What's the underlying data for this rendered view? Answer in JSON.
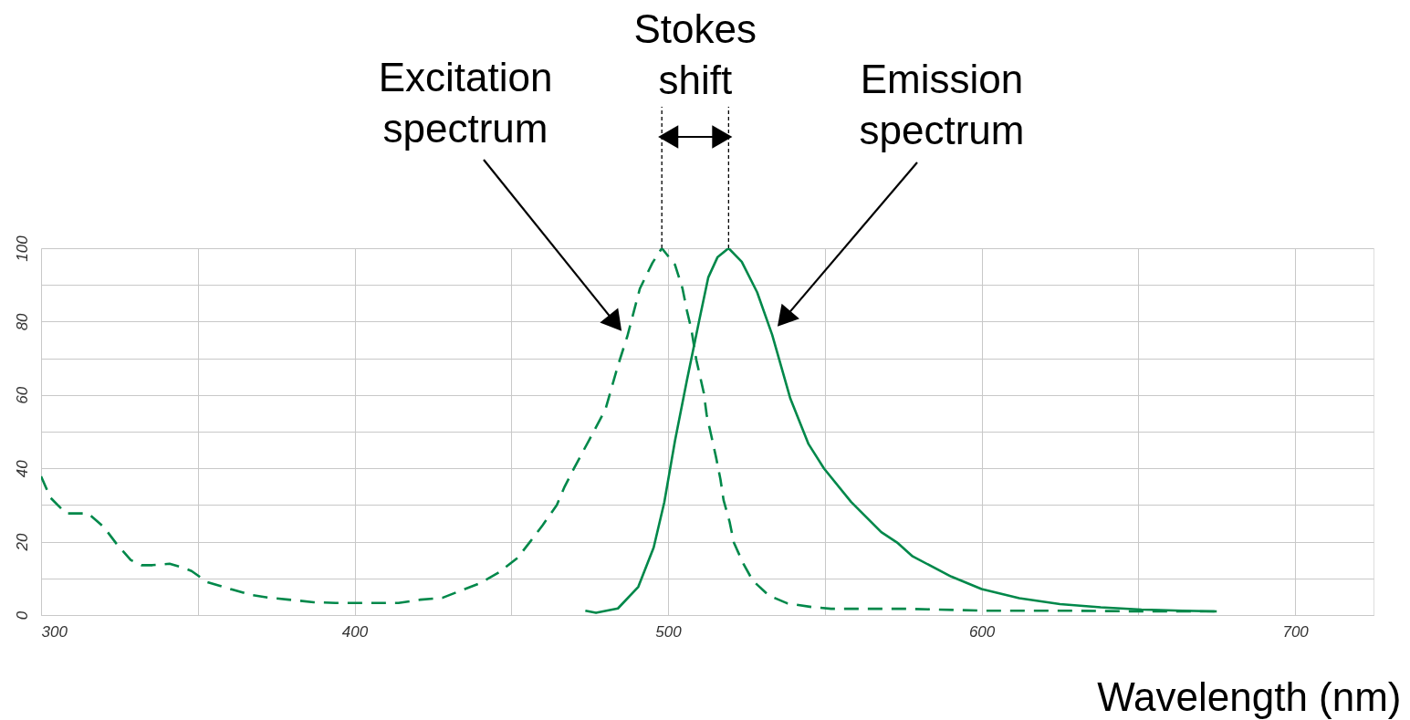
{
  "chart_data": {
    "type": "line",
    "xlabel": "Wavelength (nm)",
    "xlim": [
      300,
      725
    ],
    "ylim": [
      0,
      100
    ],
    "xticks": [
      300,
      {
        "value": 350,
        "label": null
      },
      400,
      {
        "value": 450,
        "label": null
      },
      500,
      {
        "value": 550,
        "label": null
      },
      600,
      {
        "value": 650,
        "label": null
      },
      700
    ],
    "yticks": [
      0,
      {
        "value": 10,
        "label": null
      },
      20,
      {
        "value": 30,
        "label": null
      },
      40,
      {
        "value": 50,
        "label": null
      },
      60,
      {
        "value": 70,
        "label": null
      },
      80,
      {
        "value": 90,
        "label": null
      },
      100
    ],
    "grid": true,
    "marker": "none",
    "annotations": [
      "Excitation spectrum",
      "Emission spectrum",
      "Stokes shift"
    ],
    "series": [
      {
        "color": "#00884a",
        "line_style": "dashed",
        "x": [
          300,
          303,
          308,
          315,
          320,
          324,
          328.6,
          332,
          335.5,
          341,
          345,
          348,
          353,
          360,
          367,
          373,
          379,
          387,
          394,
          401,
          407,
          414,
          421,
          428,
          434,
          440,
          446,
          452,
          456,
          460,
          464.5,
          467,
          470,
          475,
          480,
          484,
          487,
          491,
          495,
          498,
          502.2,
          504.6,
          506,
          507.4,
          509,
          511.4,
          512.3,
          513.8,
          515.3,
          516.7,
          517.7,
          519.6,
          521,
          524,
          527,
          532.2,
          538,
          545.8,
          552,
          577,
          600,
          625,
          650,
          675
        ],
        "values": [
          37.8,
          32,
          27.7,
          27.7,
          24,
          19.5,
          15,
          13.6,
          13.6,
          14,
          13,
          12,
          9,
          7.2,
          5.5,
          4.7,
          4.2,
          3.5,
          3.3,
          3.3,
          3.3,
          3.3,
          4.2,
          4.7,
          6.7,
          8.7,
          11.6,
          15.6,
          20,
          24.5,
          30,
          35,
          40,
          48,
          56,
          68,
          76,
          89,
          96,
          100,
          95.5,
          89,
          83,
          78,
          69.6,
          60.5,
          54.6,
          48.8,
          43,
          37,
          31.3,
          25.5,
          19.7,
          14,
          9.4,
          5.3,
          3.2,
          2.2,
          1.7,
          1.7,
          1.2,
          1.2,
          1,
          1
        ]
      },
      {
        "color": "#00884a",
        "line_style": "solid",
        "x": [
          473.6,
          477,
          484,
          490.5,
          495.4,
          498.8,
          502.2,
          506,
          510,
          512.8,
          515.8,
          519.3,
          523.5,
          528.4,
          533.2,
          539,
          544.8,
          549.7,
          558.4,
          568,
          573.3,
          578,
          590.3,
          600,
          612,
          625,
          638,
          651,
          664,
          675
        ],
        "values": [
          1.2,
          0.6,
          1.8,
          7.7,
          18.4,
          30.8,
          47.5,
          64,
          80.6,
          92,
          97.6,
          100,
          96.3,
          88,
          76.4,
          59,
          46.6,
          40,
          30.8,
          22.6,
          19.6,
          16,
          10.5,
          7.1,
          4.6,
          3,
          2.1,
          1.5,
          1.2,
          1
        ]
      }
    ]
  }
}
